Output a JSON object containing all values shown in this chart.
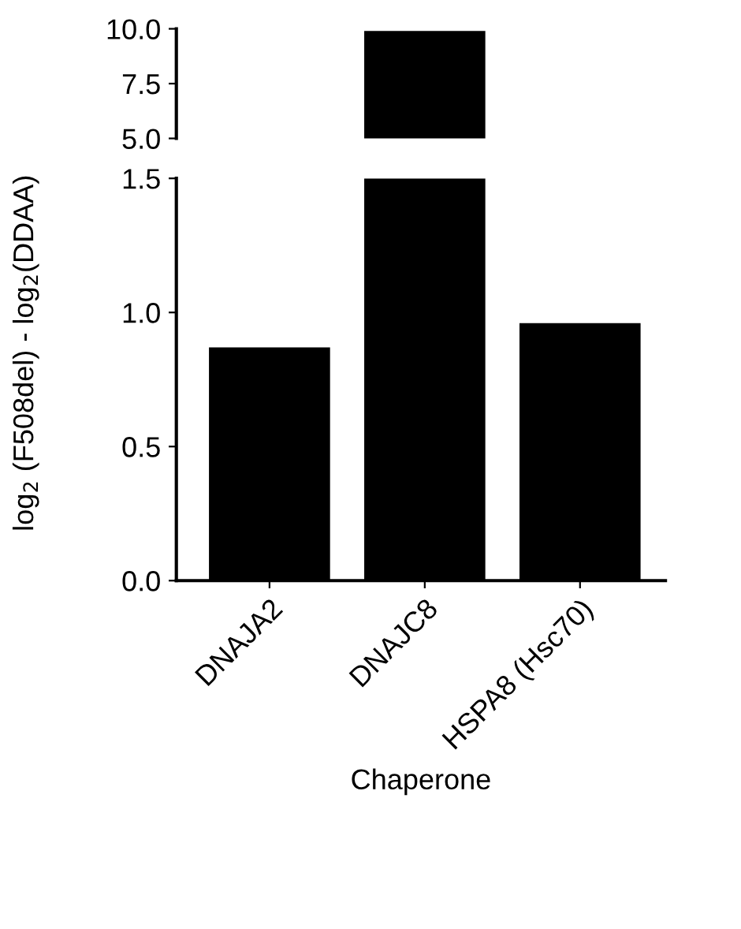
{
  "chart_data": [
    {
      "type": "bar",
      "categories": [
        null,
        null,
        null
      ],
      "values": [
        null,
        9.9,
        null
      ],
      "color": "#000000",
      "ylim": [
        5,
        10
      ],
      "yticks": [
        {
          "value": 5,
          "label": "5.0"
        },
        {
          "value": 7.5,
          "label": "7.5"
        },
        {
          "value": 10,
          "label": "10.0"
        }
      ],
      "tick_labels": "y",
      "grid": false
    },
    {
      "type": "bar",
      "categories": [
        "DNAJA2",
        "DNAJC8",
        "HSPA8 (Hsc70)"
      ],
      "values": [
        0.87,
        1.5,
        0.96
      ],
      "color": "#000000",
      "ylim": [
        0,
        1.5
      ],
      "yticks": [
        {
          "value": 0,
          "label": "0.0"
        },
        {
          "value": 0.5,
          "label": "0.5"
        },
        {
          "value": 1.0,
          "label": "1.0"
        },
        {
          "value": 1.5,
          "label": "1.5"
        }
      ],
      "xlabel": "Chaperone",
      "ylabel": "log$_{2}$ (F508del) - log$_{2}$(DDAA)",
      "grid": false
    }
  ]
}
